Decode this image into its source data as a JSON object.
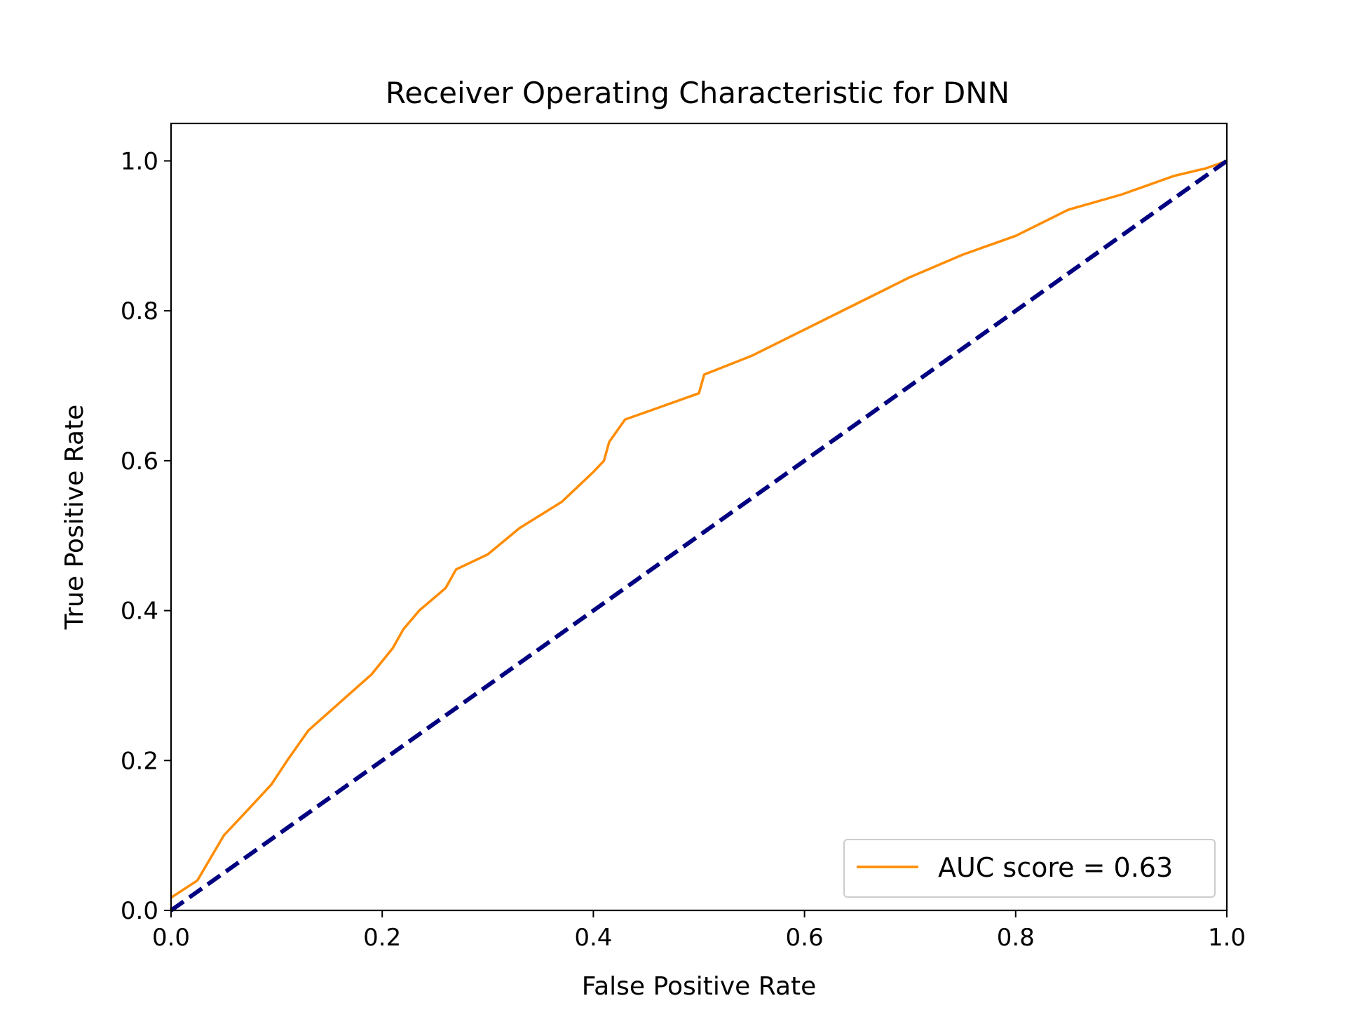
{
  "chart_data": {
    "type": "line",
    "title": "Receiver Operating Characteristic for DNN",
    "xlabel": "False Positive Rate",
    "ylabel": "True Positive Rate",
    "xlim": [
      0.0,
      1.0
    ],
    "ylim": [
      0.0,
      1.05
    ],
    "xticks": [
      "0.0",
      "0.2",
      "0.4",
      "0.6",
      "0.8",
      "1.0"
    ],
    "yticks": [
      "0.0",
      "0.2",
      "0.4",
      "0.6",
      "0.8",
      "1.0"
    ],
    "grid": false,
    "legend_position": "lower-right",
    "series": [
      {
        "name": "AUC score = 0.63",
        "color": "#ff8c00",
        "style": "solid",
        "x": [
          0.0,
          0.025,
          0.05,
          0.07,
          0.095,
          0.11,
          0.13,
          0.15,
          0.17,
          0.19,
          0.21,
          0.22,
          0.235,
          0.26,
          0.27,
          0.3,
          0.33,
          0.37,
          0.385,
          0.4,
          0.41,
          0.415,
          0.43,
          0.46,
          0.5,
          0.505,
          0.55,
          0.6,
          0.65,
          0.7,
          0.75,
          0.8,
          0.85,
          0.9,
          0.95,
          0.98,
          1.0
        ],
        "y": [
          0.017,
          0.04,
          0.1,
          0.13,
          0.168,
          0.2,
          0.24,
          0.265,
          0.29,
          0.315,
          0.35,
          0.375,
          0.4,
          0.43,
          0.455,
          0.475,
          0.51,
          0.545,
          0.565,
          0.585,
          0.6,
          0.625,
          0.655,
          0.67,
          0.69,
          0.715,
          0.74,
          0.775,
          0.81,
          0.845,
          0.875,
          0.9,
          0.935,
          0.955,
          0.98,
          0.99,
          1.0
        ]
      },
      {
        "name": "",
        "color": "#000080",
        "style": "dashed",
        "x": [
          0.0,
          1.0
        ],
        "y": [
          0.0,
          1.0
        ]
      }
    ]
  }
}
